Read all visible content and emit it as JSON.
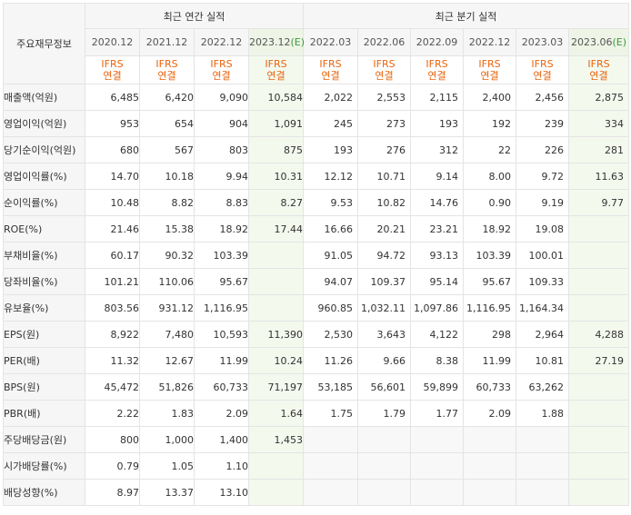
{
  "header": {
    "corner_label": "주요재무정보",
    "annual_group": "최근 연간 실적",
    "quarter_group": "최근 분기 실적",
    "annual_periods": [
      "2020.12",
      "2021.12",
      "2022.12",
      "2023.12"
    ],
    "annual_est_mark": "(E)",
    "quarter_periods": [
      "2022.03",
      "2022.06",
      "2022.09",
      "2022.12",
      "2023.03",
      "2023.06"
    ],
    "quarter_est_mark": "(E)",
    "ifrs_line1": "IFRS",
    "ifrs_line2": "연결"
  },
  "rows": [
    {
      "label": "매출액(억원)",
      "annual": [
        "6,485",
        "6,420",
        "9,090",
        "10,584"
      ],
      "quarter": [
        "2,022",
        "2,553",
        "2,115",
        "2,400",
        "2,456",
        "2,875"
      ]
    },
    {
      "label": "영업이익(억원)",
      "annual": [
        "953",
        "654",
        "904",
        "1,091"
      ],
      "quarter": [
        "245",
        "273",
        "193",
        "192",
        "239",
        "334"
      ]
    },
    {
      "label": "당기순이익(억원)",
      "annual": [
        "680",
        "567",
        "803",
        "875"
      ],
      "quarter": [
        "193",
        "276",
        "312",
        "22",
        "226",
        "281"
      ]
    },
    {
      "label": "영업이익률(%)",
      "annual": [
        "14.70",
        "10.18",
        "9.94",
        "10.31"
      ],
      "quarter": [
        "12.12",
        "10.71",
        "9.14",
        "8.00",
        "9.72",
        "11.63"
      ]
    },
    {
      "label": "순이익률(%)",
      "annual": [
        "10.48",
        "8.82",
        "8.83",
        "8.27"
      ],
      "quarter": [
        "9.53",
        "10.82",
        "14.76",
        "0.90",
        "9.19",
        "9.77"
      ]
    },
    {
      "label": "ROE(%)",
      "annual": [
        "21.46",
        "15.38",
        "18.92",
        "17.44"
      ],
      "quarter": [
        "16.66",
        "20.21",
        "23.21",
        "18.92",
        "19.08",
        ""
      ]
    },
    {
      "label": "부채비율(%)",
      "annual": [
        "60.17",
        "90.32",
        "103.39",
        ""
      ],
      "quarter": [
        "91.05",
        "94.72",
        "93.13",
        "103.39",
        "100.01",
        ""
      ]
    },
    {
      "label": "당좌비율(%)",
      "annual": [
        "101.21",
        "110.06",
        "95.67",
        ""
      ],
      "quarter": [
        "94.07",
        "109.37",
        "95.14",
        "95.67",
        "109.33",
        ""
      ]
    },
    {
      "label": "유보율(%)",
      "annual": [
        "803.56",
        "931.12",
        "1,116.95",
        ""
      ],
      "quarter": [
        "960.85",
        "1,032.11",
        "1,097.86",
        "1,116.95",
        "1,164.34",
        ""
      ]
    },
    {
      "label": "EPS(원)",
      "annual": [
        "8,922",
        "7,480",
        "10,593",
        "11,390"
      ],
      "quarter": [
        "2,530",
        "3,643",
        "4,122",
        "298",
        "2,964",
        "4,288"
      ]
    },
    {
      "label": "PER(배)",
      "annual": [
        "11.32",
        "12.67",
        "11.99",
        "10.24"
      ],
      "quarter": [
        "11.26",
        "9.66",
        "8.38",
        "11.99",
        "10.81",
        "27.19"
      ]
    },
    {
      "label": "BPS(원)",
      "annual": [
        "45,472",
        "51,826",
        "60,733",
        "71,197"
      ],
      "quarter": [
        "53,185",
        "56,601",
        "59,899",
        "60,733",
        "63,262",
        ""
      ]
    },
    {
      "label": "PBR(배)",
      "annual": [
        "2.22",
        "1.83",
        "2.09",
        "1.64"
      ],
      "quarter": [
        "1.75",
        "1.79",
        "1.77",
        "2.09",
        "1.88",
        ""
      ]
    },
    {
      "label": "주당배당금(원)",
      "annual": [
        "800",
        "1,000",
        "1,400",
        "1,453"
      ],
      "quarter": [
        "",
        "",
        "",
        "",
        "",
        ""
      ]
    },
    {
      "label": "시가배당률(%)",
      "annual": [
        "0.79",
        "1.05",
        "1.10",
        ""
      ],
      "quarter": [
        "",
        "",
        "",
        "",
        "",
        ""
      ]
    },
    {
      "label": "배당성향(%)",
      "annual": [
        "8.97",
        "13.37",
        "13.10",
        ""
      ],
      "quarter": [
        "",
        "",
        "",
        "",
        "",
        ""
      ]
    }
  ],
  "colors": {
    "ifrs_text": "#e8640c",
    "estimate_bg": "#f4f9ee",
    "estimate_mark": "#3a9a3a",
    "header_bg": "#f6f6f6"
  }
}
